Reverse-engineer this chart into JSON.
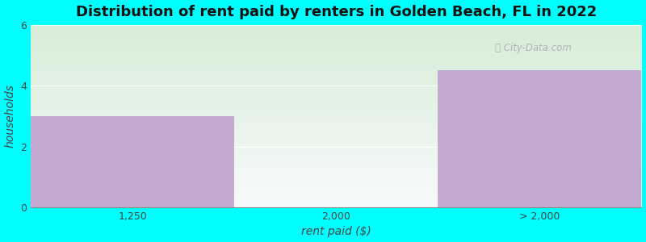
{
  "title": "Distribution of rent paid by renters in Golden Beach, FL in 2022",
  "categories": [
    "1,250",
    "2,000",
    "> 2,000"
  ],
  "values": [
    3,
    0,
    4.5
  ],
  "bar_color": "#c4aad0",
  "background_color": "#00ffff",
  "plot_bg_top_left": "#d8edd8",
  "plot_bg_bottom_right": "#f8f8ff",
  "xlabel": "rent paid ($)",
  "ylabel": "households",
  "ylim": [
    0,
    6
  ],
  "yticks": [
    0,
    2,
    4,
    6
  ],
  "title_fontsize": 13,
  "axis_label_fontsize": 10,
  "tick_fontsize": 9,
  "watermark": "City-Data.com"
}
